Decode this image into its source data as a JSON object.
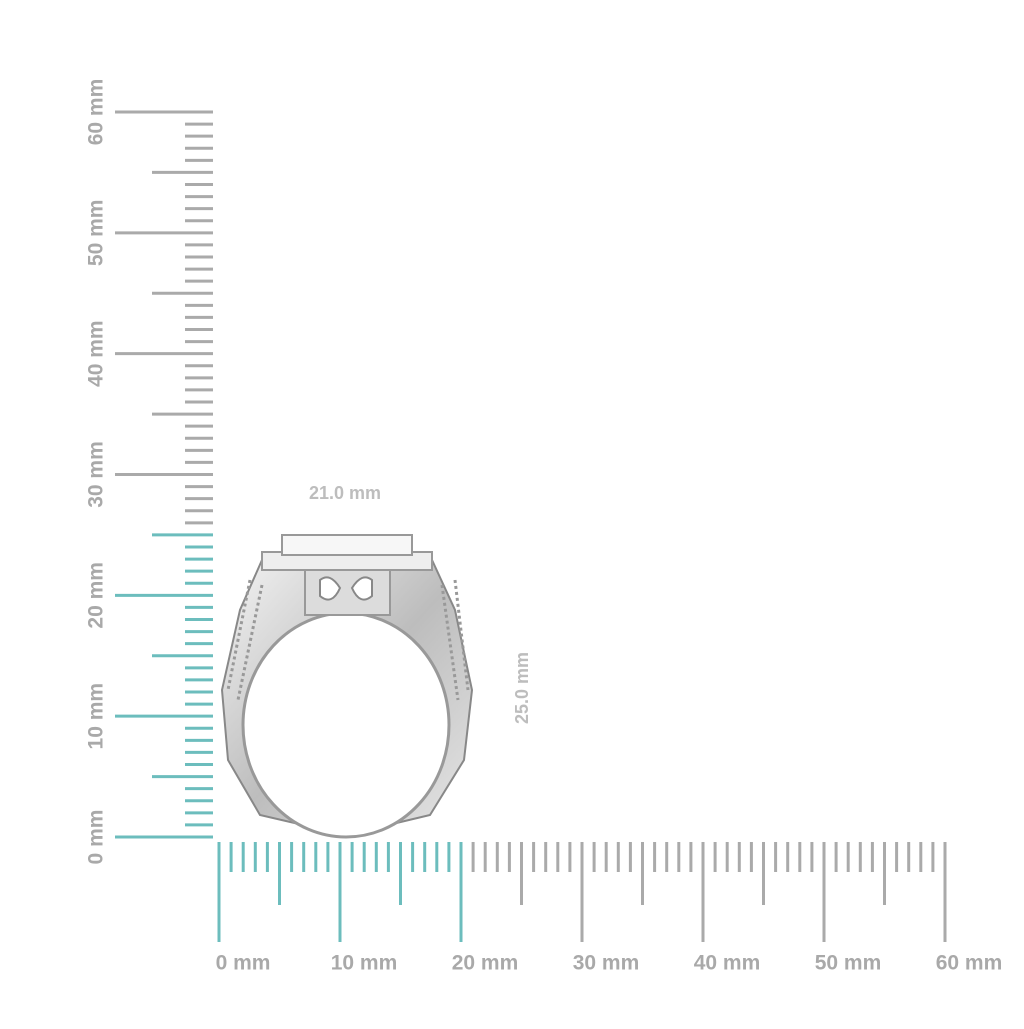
{
  "rulers": {
    "vertical": {
      "labels": [
        "0 mm",
        "10 mm",
        "20 mm",
        "30 mm",
        "40 mm",
        "50 mm",
        "60 mm"
      ]
    },
    "horizontal": {
      "labels": [
        "0 mm",
        "10 mm",
        "20 mm",
        "30 mm",
        "40 mm",
        "50 mm",
        "60 mm"
      ]
    }
  },
  "dimensions": {
    "width": "21.0 mm",
    "height": "25.0 mm"
  }
}
